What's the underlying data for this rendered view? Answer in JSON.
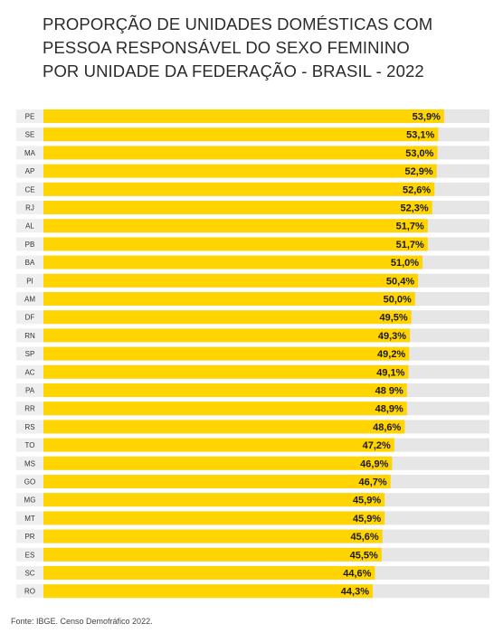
{
  "title_lines": [
    "PROPORÇÃO DE UNIDADES DOMÉSTICAS COM",
    "PESSOA RESPONSÁVEL DO SEXO FEMININO",
    "POR UNIDADE DA FEDERAÇÃO - BRASIL - 2022"
  ],
  "source": "Fonte: IBGE. Censo Demofráfico 2022.",
  "colors": {
    "bar": "#FFD400",
    "track": "#E6E6E6",
    "label_bg": "#EFEFEF",
    "text": "#1a1a1a"
  },
  "chart_data": {
    "type": "bar",
    "orientation": "horizontal",
    "categories": [
      "PE",
      "SE",
      "MA",
      "AP",
      "CE",
      "RJ",
      "AL",
      "PB",
      "BA",
      "PI",
      "AM",
      "DF",
      "RN",
      "SP",
      "AC",
      "PA",
      "RR",
      "RS",
      "TO",
      "MS",
      "GO",
      "MG",
      "MT",
      "PR",
      "ES",
      "SC",
      "RO"
    ],
    "values": [
      53.9,
      53.1,
      53.0,
      52.9,
      52.6,
      52.3,
      51.7,
      51.7,
      51.0,
      50.4,
      50.0,
      49.5,
      49.3,
      49.2,
      49.1,
      48.9,
      48.9,
      48.6,
      47.2,
      46.9,
      46.7,
      45.9,
      45.9,
      45.6,
      45.5,
      44.6,
      44.3
    ],
    "value_labels": [
      "53,9%",
      "53,1%",
      "53,0%",
      "52,9%",
      "52,6%",
      "52,3%",
      "51,7%",
      "51,7%",
      "51,0%",
      "50,4%",
      "50,0%",
      "49,5%",
      "49,3%",
      "49,2%",
      "49,1%",
      "48 9%",
      "48,9%",
      "48,6%",
      "47,2%",
      "46,9%",
      "46,7%",
      "45,9%",
      "45,9%",
      "45,6%",
      "45,5%",
      "44,6%",
      "44,3%"
    ],
    "xlim": [
      0,
      60
    ],
    "grid": false,
    "legend": "none"
  }
}
